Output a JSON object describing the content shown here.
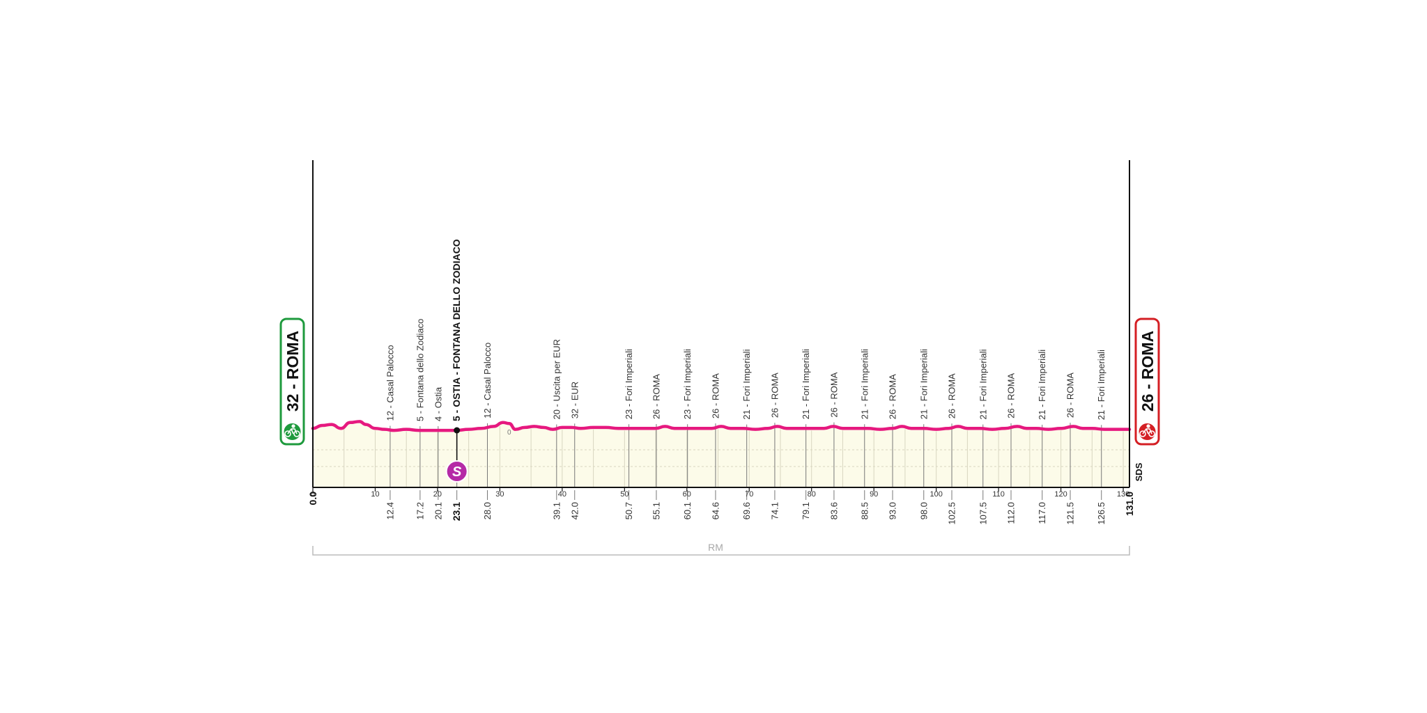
{
  "chart_data": {
    "type": "area",
    "title": "",
    "xlabel": "",
    "ylabel": "",
    "xlim": [
      0,
      131.0
    ],
    "grid": true,
    "line_color": "#e6197f",
    "fill_color": "#fcfbe9",
    "x_ticks": [
      {
        "label": "0",
        "value": 0
      },
      {
        "label": "10",
        "value": 10
      },
      {
        "label": "20",
        "value": 20
      },
      {
        "label": "30",
        "value": 30
      },
      {
        "label": "40",
        "value": 40
      },
      {
        "label": "50",
        "value": 50
      },
      {
        "label": "60",
        "value": 60
      },
      {
        "label": "70",
        "value": 70
      },
      {
        "label": "80",
        "value": 80
      },
      {
        "label": "90",
        "value": 90
      },
      {
        "label": "100",
        "value": 100
      },
      {
        "label": "110",
        "value": 110
      },
      {
        "label": "120",
        "value": 120
      },
      {
        "label": "130",
        "value": 130
      }
    ],
    "start": {
      "km_label": "0.0",
      "altitude": "32",
      "name": "ROMA",
      "label": "32 - ROMA",
      "color": "#1e9a3d"
    },
    "finish": {
      "km_label": "131.0",
      "altitude": "26",
      "name": "ROMA",
      "label": "26 - ROMA",
      "color": "#d41f24"
    },
    "waypoints": [
      {
        "km": 12.4,
        "km_label": "12.4",
        "name": "12 - Casal Palocco"
      },
      {
        "km": 17.2,
        "km_label": "17.2",
        "name": "5 - Fontana dello Zodiaco"
      },
      {
        "km": 20.1,
        "km_label": "20.1",
        "name": "4 - Ostia"
      },
      {
        "km": 23.1,
        "km_label": "23.1",
        "name": "5 - OSTIA - FONTANA DELLO ZODIACO",
        "bold": true,
        "sprint": true
      },
      {
        "km": 28.0,
        "km_label": "28.0",
        "name": "12 - Casal Palocco"
      },
      {
        "km": 39.1,
        "km_label": "39.1",
        "name": "20 - Uscita per EUR"
      },
      {
        "km": 42.0,
        "km_label": "42.0",
        "name": "32 - EUR"
      },
      {
        "km": 50.7,
        "km_label": "50.7",
        "name": "23 - Fori Imperiali"
      },
      {
        "km": 55.1,
        "km_label": "55.1",
        "name": "26 - ROMA"
      },
      {
        "km": 60.1,
        "km_label": "60.1",
        "name": "23 - Fori Imperiali"
      },
      {
        "km": 64.6,
        "km_label": "64.6",
        "name": "26 - ROMA"
      },
      {
        "km": 69.6,
        "km_label": "69.6",
        "name": "21 - Fori Imperiali"
      },
      {
        "km": 74.1,
        "km_label": "74.1",
        "name": "26 - ROMA"
      },
      {
        "km": 79.1,
        "km_label": "79.1",
        "name": "21 - Fori Imperiali"
      },
      {
        "km": 83.6,
        "km_label": "83.6",
        "name": "26 - ROMA"
      },
      {
        "km": 88.5,
        "km_label": "88.5",
        "name": "21 - Fori Imperiali"
      },
      {
        "km": 93.0,
        "km_label": "93.0",
        "name": "26 - ROMA"
      },
      {
        "km": 98.0,
        "km_label": "98.0",
        "name": "21 - Fori Imperiali"
      },
      {
        "km": 102.5,
        "km_label": "102.5",
        "name": "26 - ROMA"
      },
      {
        "km": 107.5,
        "km_label": "107.5",
        "name": "21 - Fori Imperiali"
      },
      {
        "km": 112.0,
        "km_label": "112.0",
        "name": "26 - ROMA"
      },
      {
        "km": 117.0,
        "km_label": "117.0",
        "name": "21 - Fori Imperiali"
      },
      {
        "km": 121.5,
        "km_label": "121.5",
        "name": "26 - ROMA"
      },
      {
        "km": 126.5,
        "km_label": "126.5",
        "name": "21 - Fori Imperiali"
      }
    ],
    "sprint_badge": {
      "letter": "S",
      "color": "#b52aa6"
    },
    "profile_marker": {
      "label": "0",
      "km": 31.5
    },
    "profile_x": [
      0,
      1.5,
      3,
      4.5,
      6,
      7.5,
      8.5,
      10,
      11.5,
      13,
      15,
      17,
      19,
      21,
      23,
      25,
      27,
      29,
      30.5,
      31.5,
      32.5,
      34,
      35.5,
      37,
      38.5,
      40,
      41.5,
      43,
      45,
      47,
      49,
      51,
      53,
      55,
      56.5,
      58,
      60,
      62,
      64,
      65.5,
      67,
      69,
      71,
      73,
      74.5,
      76,
      78,
      80,
      82,
      83.5,
      85,
      87,
      89,
      91,
      93,
      94.5,
      96,
      98,
      100,
      102,
      103.5,
      105,
      107,
      109,
      111,
      113,
      114.5,
      116,
      118,
      120,
      122,
      123.5,
      125,
      127,
      129,
      131
    ],
    "profile_y": [
      30,
      31.5,
      32,
      30,
      33,
      33.5,
      32,
      30,
      29.5,
      29,
      29.5,
      29,
      29,
      29,
      29,
      29.5,
      30,
      31,
      33,
      32.5,
      29.5,
      30.5,
      31,
      30.5,
      29.5,
      30.5,
      30.5,
      30,
      30.5,
      30.5,
      30,
      30,
      30,
      30,
      31,
      30,
      30,
      30,
      30,
      31,
      30,
      30,
      29.5,
      30,
      31,
      30,
      30,
      30,
      30,
      31,
      30,
      30,
      30,
      29.5,
      30,
      31,
      30,
      30,
      29.5,
      30,
      31,
      30,
      30,
      29.5,
      30,
      31,
      30,
      30,
      29.5,
      30,
      31,
      30,
      30,
      29.5,
      29.5,
      29.5
    ],
    "sds_label": "SDS",
    "region": {
      "label": "RM",
      "from_km": 0,
      "to_km": 131.0
    }
  }
}
